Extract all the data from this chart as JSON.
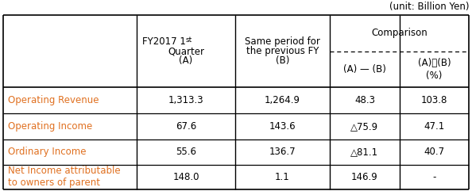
{
  "unit_label": "(unit: Billion Yen)",
  "comparison_label": "Comparison",
  "col1_header": "FY2017 1ˢᵗ\nQuarter\n(A)",
  "col2_header": "Same period for\nthe previous FY\n(B)",
  "col3_header": "(A) — (B)",
  "col4_header_top": "(A)／(B)",
  "col4_header_bot": "(%)",
  "row_labels": [
    "Operating Revenue",
    "Operating Income",
    "Ordinary Income",
    "Net Income attributable\nto owners of parent"
  ],
  "data": [
    [
      "1,313.3",
      "1,264.9",
      "48.3",
      "103.8"
    ],
    [
      "67.6",
      "143.6",
      "△75.9",
      "47.1"
    ],
    [
      "55.6",
      "136.7",
      "△81.1",
      "40.7"
    ],
    [
      "148.0",
      "1.1",
      "146.9",
      "-"
    ]
  ],
  "orange": "#e07020",
  "black": "#000000",
  "white": "#ffffff",
  "font_size": 8.5,
  "small_font": 7.5
}
